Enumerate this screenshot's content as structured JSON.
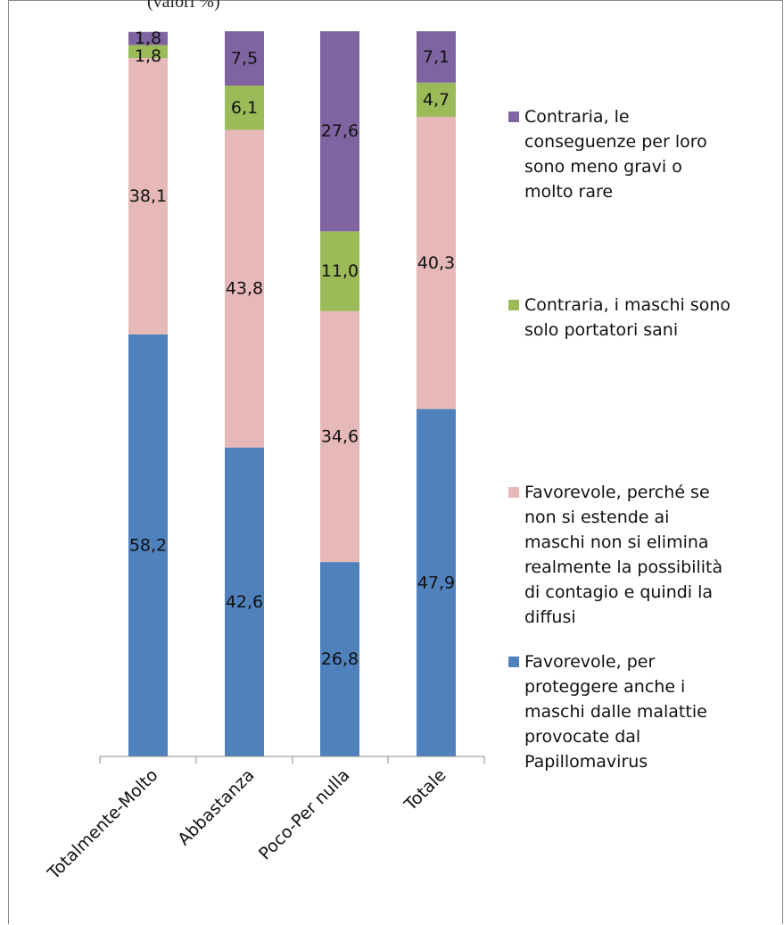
{
  "header": {
    "caption": "(valori %)"
  },
  "chart_data": {
    "type": "bar",
    "stacked": true,
    "categories": [
      "Totalmente-Molto",
      "Abbastanza",
      "Poco-Per nulla",
      "Totale"
    ],
    "ylim": [
      0,
      100
    ],
    "grid": false,
    "legend_position": "right",
    "series": [
      {
        "name": "Favorevole, per proteggere anche i maschi dalle malattie provocate dal Papillomavirus",
        "color": "#4F81BD",
        "values": [
          58.2,
          42.6,
          26.8,
          47.9
        ],
        "labels": [
          "58,2",
          "42,6",
          "26,8",
          "47,9"
        ]
      },
      {
        "name": "Favorevole, perché se non si estende ai maschi non si elimina realmente la possibilità di contagio e quindi la diffusi",
        "color": "#E6B9B8",
        "values": [
          38.1,
          43.8,
          34.6,
          40.3
        ],
        "labels": [
          "38,1",
          "43,8",
          "34,6",
          "40,3"
        ]
      },
      {
        "name": "Contraria, i maschi sono solo portatori sani",
        "color": "#9BBB59",
        "values": [
          1.8,
          6.1,
          11.0,
          4.7
        ],
        "labels": [
          "1,8",
          "6,1",
          "11,0",
          "4,7"
        ]
      },
      {
        "name": "Contraria, le conseguenze per loro sono meno gravi o molto rare",
        "color": "#8064A2",
        "values": [
          1.8,
          7.5,
          27.6,
          7.1
        ],
        "labels": [
          "1,8",
          "7,5",
          "27,6",
          "7,1"
        ]
      }
    ]
  },
  "legend": {
    "items": [
      {
        "label": "Contraria, le\nconseguenze per loro\nsono meno gravi o\nmolto rare",
        "color": "#8064A2"
      },
      {
        "label": "Contraria, i maschi sono\nsolo portatori sani",
        "color": "#9BBB59"
      },
      {
        "label": "Favorevole, perché se\nnon si estende ai\nmaschi non si elimina\nrealmente la possibilità\ndi contagio e quindi la\ndiffusi",
        "color": "#E6B9B8"
      },
      {
        "label": "Favorevole, per\nproteggere anche i\nmaschi dalle malattie\nprovocate dal\nPapillomavirus",
        "color": "#4F81BD"
      }
    ]
  }
}
